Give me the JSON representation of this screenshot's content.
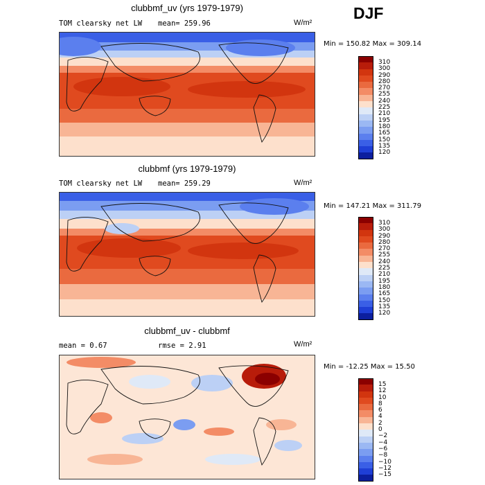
{
  "season": "DJF",
  "panels": [
    {
      "title": "clubbmf_uv (yrs 1979-1979)",
      "left_label": "TOM clearsky net LW",
      "mid_label": "mean= 259.96",
      "units": "W/m²",
      "minmax": "Min = 150.82  Max = 309.14",
      "levels": [
        "310",
        "300",
        "290",
        "280",
        "270",
        "255",
        "240",
        "225",
        "210",
        "195",
        "180",
        "165",
        "150",
        "135",
        "120"
      ],
      "colors": [
        "#8b0000",
        "#b81c0a",
        "#d2350f",
        "#e04a1f",
        "#ea6a3f",
        "#f38c66",
        "#f8b595",
        "#fde0cc",
        "#dfe9f7",
        "#bcd0f5",
        "#9bb8f3",
        "#7b9df1",
        "#5b7fee",
        "#3a5fe6",
        "#1f3fd6",
        "#0c1f9e"
      ],
      "base": "#f7a07a"
    },
    {
      "title": "clubbmf (yrs 1979-1979)",
      "left_label": "TOM clearsky net LW",
      "mid_label": "mean= 259.29",
      "units": "W/m²",
      "minmax": "Min = 147.21  Max = 311.79",
      "levels": [
        "310",
        "300",
        "290",
        "280",
        "270",
        "255",
        "240",
        "225",
        "210",
        "195",
        "180",
        "165",
        "150",
        "135",
        "120"
      ],
      "colors": [
        "#8b0000",
        "#b81c0a",
        "#d2350f",
        "#e04a1f",
        "#ea6a3f",
        "#f38c66",
        "#f8b595",
        "#fde0cc",
        "#dfe9f7",
        "#bcd0f5",
        "#9bb8f3",
        "#7b9df1",
        "#5b7fee",
        "#3a5fe6",
        "#1f3fd6",
        "#0c1f9e"
      ],
      "base": "#f7a07a"
    },
    {
      "title": "clubbmf_uv - clubbmf",
      "left_label": "mean =    0.67",
      "mid_label": "rmse =    2.91",
      "units": "W/m²",
      "minmax": "Min = -12.25  Max =   15.50",
      "levels": [
        "15",
        "12",
        "10",
        "8",
        "6",
        "4",
        "2",
        "0",
        "−2",
        "−4",
        "−6",
        "−8",
        "−10",
        "−12",
        "−15"
      ],
      "colors": [
        "#8b0000",
        "#b81c0a",
        "#d2350f",
        "#e04a1f",
        "#ea6a3f",
        "#f38c66",
        "#f8b595",
        "#fde0cc",
        "#dfe9f7",
        "#bcd0f5",
        "#9bb8f3",
        "#7b9df1",
        "#5b7fee",
        "#3a5fe6",
        "#1f3fd6",
        "#0c1f9e"
      ],
      "base": "#fde6d6"
    }
  ]
}
